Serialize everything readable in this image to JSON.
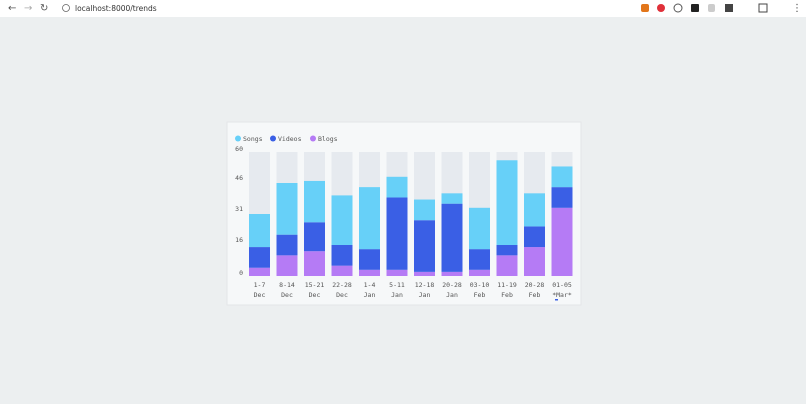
{
  "browser": {
    "url": "localhost:8000/trends"
  },
  "chart_data": {
    "type": "stacked-bar",
    "categories": [
      [
        "1-7",
        "Dec"
      ],
      [
        "8-14",
        "Dec"
      ],
      [
        "15-21",
        "Dec"
      ],
      [
        "22-28",
        "Dec"
      ],
      [
        "1-4",
        "Jan"
      ],
      [
        "5-11",
        "Jan"
      ],
      [
        "12-18",
        "Jan"
      ],
      [
        "20-28",
        "Jan"
      ],
      [
        "03-10",
        "Feb"
      ],
      [
        "11-19",
        "Feb"
      ],
      [
        "20-28",
        "Feb"
      ],
      [
        "01-05",
        "*Mar*"
      ]
    ],
    "series": [
      {
        "name": "Songs",
        "color": "#67d0f8",
        "values": [
          16,
          25,
          20,
          24,
          30,
          10,
          10,
          5,
          20,
          41,
          16,
          10
        ]
      },
      {
        "name": "Videos",
        "color": "#3a5fe5",
        "values": [
          10,
          10,
          14,
          10,
          10,
          35,
          25,
          33,
          10,
          5,
          10,
          10
        ]
      },
      {
        "name": "Blogs",
        "color": "#b57bf5",
        "values": [
          4,
          10,
          12,
          5,
          3,
          3,
          2,
          2,
          3,
          10,
          14,
          33
        ]
      }
    ],
    "ylim": [
      0,
      60
    ],
    "yticks": [
      0,
      16,
      31,
      46,
      60
    ],
    "legend": "top-left"
  }
}
